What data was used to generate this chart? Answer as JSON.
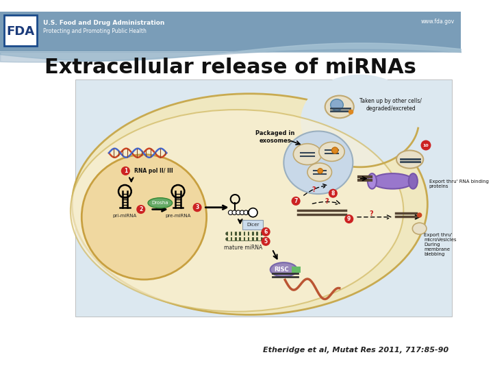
{
  "title": "Extracellular release of miRNAs",
  "title_fontsize": 22,
  "bg_color": "#ffffff",
  "header_bg_color": "#7a9db8",
  "header_wave_color": "#9ab8cc",
  "fda_text": "U.S. Food and Drug Administration",
  "fda_subtext": "Protecting and Promoting Public Health",
  "fda_url": "www.fda.gov",
  "citation": "Etheridge et al, Mutat Res 2011, 717:85-90",
  "diagram_bg": "#dce8f0",
  "cell_outer_color": "#f0e8c0",
  "nucleus_color": "#f0d8a0",
  "label_taken_up": "Taken up by other cells/\ndegraded/excreted",
  "label_packaged": "Packaged in\nexosomes",
  "label_rna_pol": "RNA pol II/ III",
  "label_pri_mirna": "pri-miRNA",
  "label_pre_mirna": "pre-miRNA",
  "label_drosha": "Drosha",
  "label_dicer": "Dicer",
  "label_mature": "mature miRNA",
  "label_risc": "RISC",
  "label_export_rna": "Export thru' RNA binding\nproteins",
  "label_export_micro": "Export thru'\nmicroVesicles\nDuring\nmembrane\nblebbing"
}
